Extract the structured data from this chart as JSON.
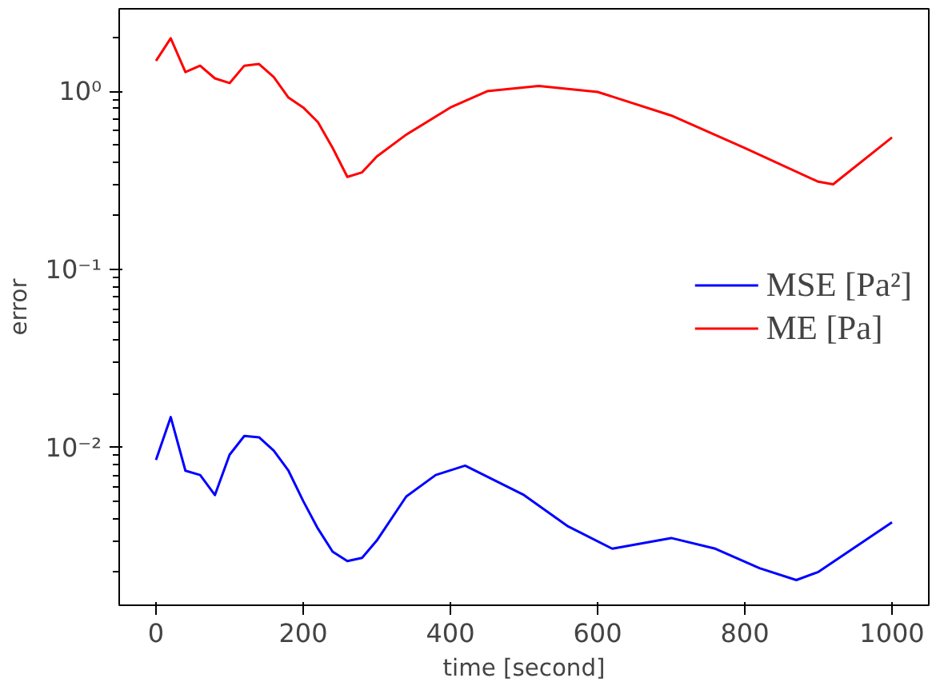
{
  "chart_data": {
    "type": "line",
    "xlabel": "time [second]",
    "ylabel": "error",
    "log": "y",
    "xlim": [
      -50,
      1050
    ],
    "xticks": [
      0,
      200,
      400,
      600,
      800,
      1000
    ],
    "ylim": [
      0.0013,
      2.9
    ],
    "yticks": [
      {
        "value": 1,
        "label": "10⁰"
      },
      {
        "value": 0.1,
        "label": "10⁻¹"
      },
      {
        "value": 0.01,
        "label": "10⁻²"
      }
    ],
    "grid": false,
    "legend": "right",
    "marker": "none",
    "line_style": "solid",
    "series": [
      {
        "name": "MSE [Pa²]",
        "color": "#0000ff",
        "x": [
          0,
          20,
          40,
          60,
          80,
          100,
          120,
          140,
          160,
          180,
          200,
          220,
          240,
          260,
          280,
          300,
          340,
          380,
          420,
          500,
          560,
          620,
          700,
          760,
          820,
          870,
          900,
          1000
        ],
        "values": [
          0.0085,
          0.0148,
          0.0074,
          0.007,
          0.0054,
          0.0091,
          0.0116,
          0.0114,
          0.0096,
          0.0074,
          0.005,
          0.0035,
          0.0026,
          0.0023,
          0.0024,
          0.003,
          0.0053,
          0.007,
          0.0079,
          0.0054,
          0.0036,
          0.0027,
          0.0031,
          0.0027,
          0.0021,
          0.0018,
          0.002,
          0.0038
        ]
      },
      {
        "name": "ME [Pa]",
        "color": "#ff0000",
        "x": [
          0,
          20,
          40,
          60,
          80,
          100,
          120,
          140,
          160,
          180,
          200,
          220,
          240,
          260,
          280,
          300,
          340,
          400,
          450,
          520,
          600,
          700,
          800,
          900,
          920,
          1000
        ],
        "values": [
          1.48,
          1.98,
          1.28,
          1.39,
          1.18,
          1.11,
          1.39,
          1.42,
          1.2,
          0.92,
          0.81,
          0.67,
          0.48,
          0.33,
          0.35,
          0.43,
          0.57,
          0.81,
          1.0,
          1.07,
          0.99,
          0.73,
          0.48,
          0.31,
          0.3,
          0.55
        ]
      }
    ]
  }
}
